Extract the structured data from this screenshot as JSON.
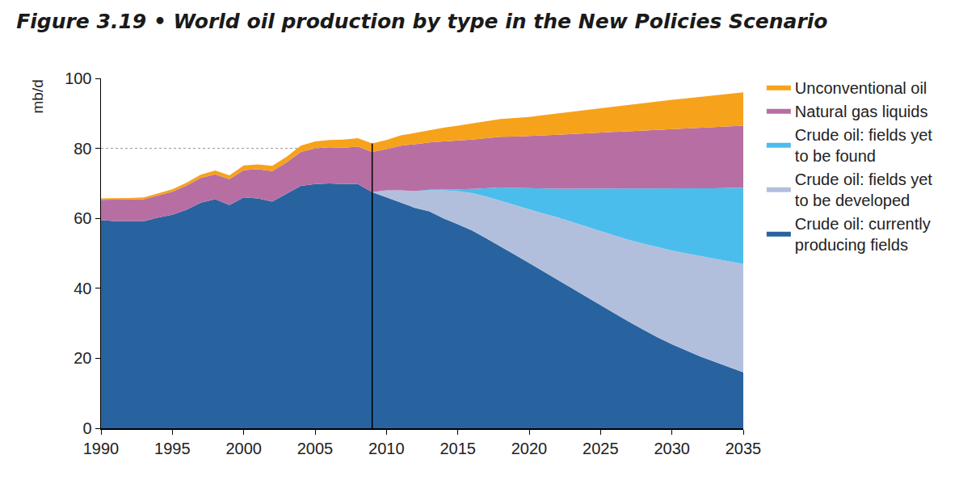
{
  "chart_data": {
    "type": "area",
    "title": "Figure 3.19 • World oil production by type in the New Policies Scenario",
    "ylabel": "mb/d",
    "stacked": true,
    "grid": true,
    "legend": "right",
    "x": [
      1990,
      1991,
      1992,
      1993,
      1994,
      1995,
      1996,
      1997,
      1998,
      1999,
      2000,
      2001,
      2002,
      2003,
      2004,
      2005,
      2006,
      2007,
      2008,
      2009,
      2010,
      2011,
      2012,
      2013,
      2014,
      2015,
      2016,
      2017,
      2018,
      2019,
      2020,
      2021,
      2022,
      2023,
      2024,
      2025,
      2026,
      2027,
      2028,
      2029,
      2030,
      2031,
      2032,
      2033,
      2034,
      2035
    ],
    "xlim": [
      1990,
      2035
    ],
    "xticks": [
      1990,
      1995,
      2000,
      2005,
      2010,
      2015,
      2020,
      2025,
      2030,
      2035
    ],
    "ylim": [
      0,
      100
    ],
    "yticks": [
      0,
      20,
      40,
      60,
      80,
      100
    ],
    "vlines": [
      2009
    ],
    "series": [
      {
        "name": "Crude oil: currently\nproducing fields",
        "color": "#2863a0",
        "values": [
          59.5,
          59.2,
          59.2,
          59.2,
          60.2,
          61,
          62.5,
          64.5,
          65.5,
          63.8,
          66,
          65.7,
          64.8,
          67,
          69.3,
          69.8,
          70,
          69.8,
          69.8,
          67.5,
          66,
          64.5,
          63,
          62,
          60,
          58.3,
          56.5,
          54.3,
          52,
          49.6,
          47.2,
          44.8,
          42.4,
          40,
          37.6,
          35.2,
          32.8,
          30.4,
          28.2,
          26,
          24,
          22.2,
          20.5,
          19,
          17.5,
          16
        ]
      },
      {
        "name": "Crude oil: fields yet\nto be developed",
        "color": "#b2bfdc",
        "values": [
          0,
          0,
          0,
          0,
          0,
          0,
          0,
          0,
          0,
          0,
          0,
          0,
          0,
          0,
          0,
          0,
          0,
          0,
          0,
          0,
          2,
          3.5,
          4.8,
          6,
          8,
          9.5,
          10.7,
          11.9,
          13,
          14.1,
          15.3,
          16.6,
          17.9,
          19,
          20.1,
          21.1,
          22.2,
          23.4,
          24.6,
          25.8,
          26.8,
          27.8,
          28.7,
          29.4,
          30.2,
          31
        ]
      },
      {
        "name": "Crude oil: fields yet\nto be found",
        "color": "#4bbdec",
        "values": [
          0,
          0,
          0,
          0,
          0,
          0,
          0,
          0,
          0,
          0,
          0,
          0,
          0,
          0,
          0,
          0,
          0,
          0,
          0,
          0,
          0,
          0,
          0,
          0.2,
          0.2,
          0.5,
          1.2,
          2.4,
          3.8,
          5,
          6.1,
          7.1,
          8.2,
          9.5,
          10.8,
          12.2,
          13.5,
          14.7,
          15.7,
          16.7,
          17.8,
          18.6,
          19.4,
          20.2,
          21,
          21.7
        ]
      },
      {
        "name": "Natural gas liquids",
        "color": "#b76fa3",
        "values": [
          5.8,
          6.1,
          6.2,
          6.3,
          6.3,
          6.6,
          6.9,
          7.1,
          7.1,
          7.4,
          7.8,
          8.3,
          8.7,
          9,
          9.7,
          10.2,
          10.3,
          10.4,
          10.7,
          11.5,
          11.8,
          12.8,
          13.4,
          13.5,
          13.8,
          13.9,
          14.1,
          14.3,
          14.5,
          14.7,
          14.9,
          15.2,
          15.4,
          15.6,
          15.8,
          15.9,
          16.1,
          16.3,
          16.5,
          16.7,
          16.8,
          17,
          17.2,
          17.4,
          17.5,
          17.8
        ]
      },
      {
        "name": "Unconventional oil",
        "color": "#f7a21b",
        "values": [
          0.4,
          0.4,
          0.4,
          0.5,
          0.6,
          0.7,
          0.8,
          0.9,
          1.1,
          1.1,
          1.3,
          1.4,
          1.5,
          1.6,
          1.8,
          2,
          2.1,
          2.3,
          2.4,
          2.4,
          2.6,
          2.9,
          3.2,
          3.5,
          3.9,
          4.3,
          4.6,
          4.9,
          5.1,
          5.3,
          5.5,
          5.8,
          6.1,
          6.4,
          6.7,
          7,
          7.3,
          7.6,
          7.9,
          8.2,
          8.5,
          8.7,
          8.9,
          9.1,
          9.3,
          9.5
        ]
      }
    ]
  }
}
